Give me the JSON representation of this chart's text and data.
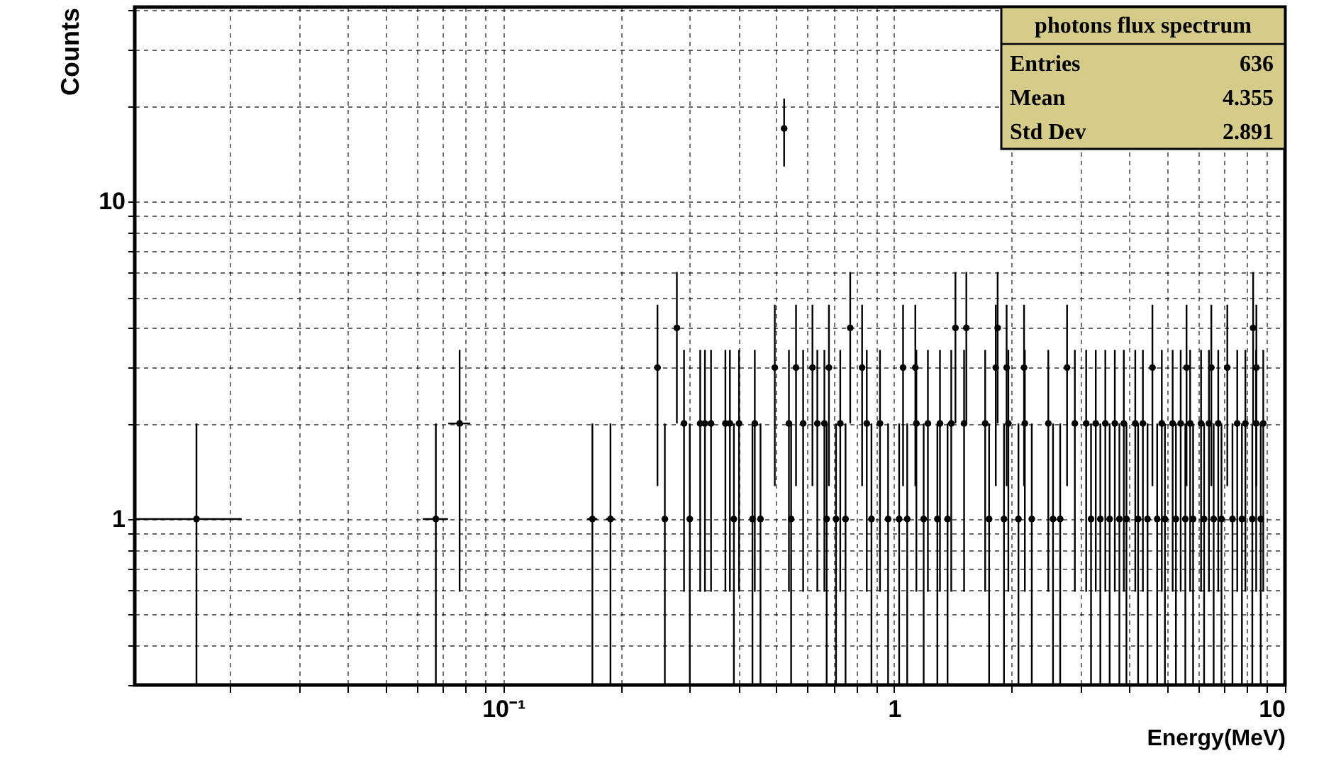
{
  "chart_data": {
    "type": "scatter",
    "title": "photons flux spectrum",
    "xlabel": "Energy(MeV)",
    "ylabel": "Counts",
    "log": "xy",
    "grid": true,
    "marker": "circle",
    "xlim": [
      0.0114,
      10
    ],
    "ylim": [
      0.3,
      41
    ],
    "xticks": [
      {
        "value": 0.02,
        "label": null
      },
      {
        "value": 0.03,
        "label": null
      },
      {
        "value": 0.04,
        "label": null
      },
      {
        "value": 0.05,
        "label": null
      },
      {
        "value": 0.06,
        "label": null
      },
      {
        "value": 0.07,
        "label": null
      },
      {
        "value": 0.08,
        "label": null
      },
      {
        "value": 0.09,
        "label": null
      },
      {
        "value": 0.1,
        "label": "10⁻¹"
      },
      {
        "value": 0.2,
        "label": null
      },
      {
        "value": 0.3,
        "label": null
      },
      {
        "value": 0.4,
        "label": null
      },
      {
        "value": 0.5,
        "label": null
      },
      {
        "value": 0.6,
        "label": null
      },
      {
        "value": 0.7,
        "label": null
      },
      {
        "value": 0.8,
        "label": null
      },
      {
        "value": 0.9,
        "label": null
      },
      1,
      {
        "value": 2,
        "label": null
      },
      {
        "value": 3,
        "label": null
      },
      {
        "value": 4,
        "label": null
      },
      {
        "value": 5,
        "label": null
      },
      {
        "value": 6,
        "label": null
      },
      {
        "value": 7,
        "label": null
      },
      {
        "value": 8,
        "label": null
      },
      {
        "value": 9,
        "label": null
      },
      10
    ],
    "yticks": [
      {
        "value": 0.3,
        "label": null
      },
      {
        "value": 0.4,
        "label": null
      },
      {
        "value": 0.5,
        "label": null
      },
      {
        "value": 0.6,
        "label": null
      },
      {
        "value": 0.7,
        "label": null
      },
      {
        "value": 0.8,
        "label": null
      },
      {
        "value": 0.9,
        "label": null
      },
      1,
      {
        "value": 2,
        "label": null
      },
      {
        "value": 3,
        "label": null
      },
      {
        "value": 4,
        "label": null
      },
      {
        "value": 5,
        "label": null
      },
      {
        "value": 6,
        "label": null
      },
      {
        "value": 7,
        "label": null
      },
      {
        "value": 8,
        "label": null
      },
      {
        "value": 9,
        "label": null
      },
      10,
      {
        "value": 20,
        "label": null
      },
      {
        "value": 30,
        "label": null
      },
      {
        "value": 40,
        "label": null
      }
    ],
    "annotations": [
      "Entries 636",
      "Mean 4.355",
      "Std Dev 2.891"
    ],
    "series": [
      {
        "color": "#000000",
        "x": [
          0.0164,
          0.0672,
          0.0773,
          0.169,
          0.188,
          0.248,
          0.259,
          0.278,
          0.29,
          0.3,
          0.319,
          0.328,
          0.34,
          0.37,
          0.38,
          0.389,
          0.401,
          0.434,
          0.44,
          0.455,
          0.495,
          0.523
        ],
        "values": [
          1,
          1,
          2,
          1,
          1,
          3,
          1,
          4,
          2,
          1,
          2,
          2,
          2,
          2,
          2,
          1,
          2,
          1,
          2,
          1,
          3,
          17
        ],
        "errors": [
          [
            0.3,
            2
          ],
          [
            0.3,
            2
          ],
          1.41,
          [
            0.3,
            2
          ],
          [
            0.3,
            2
          ],
          1.73,
          [
            0.3,
            2
          ],
          2,
          1.41,
          [
            0.3,
            2
          ],
          1.41,
          1.41,
          1.41,
          1.41,
          1.41,
          [
            0.3,
            2
          ],
          1.41,
          [
            0.3,
            2
          ],
          1.41,
          [
            0.3,
            2
          ],
          1.73,
          4.1
        ],
        "xerrors": [
          0.005,
          0.005,
          0.005,
          0.005,
          0.005,
          0.005,
          0.005,
          0.005,
          0.005,
          0.005,
          0.005,
          0.005,
          0.005,
          0.005,
          0.005,
          0.005,
          0.005,
          0.005,
          0.005,
          0.005,
          0.005,
          0.005
        ]
      },
      {
        "color": "#000000",
        "x": [
          0.561,
          0.618,
          0.681,
          0.828,
          1.054,
          1.133,
          1.82,
          1.94,
          2.15,
          2.77,
          4.58,
          5.6,
          6.48,
          7.12,
          8.45
        ],
        "values": [
          3,
          3,
          3,
          3,
          3,
          3,
          3,
          3,
          3,
          3,
          3,
          3,
          3,
          3,
          3
        ],
        "errors": [
          1.73,
          1.73,
          1.73,
          1.73,
          1.73,
          1.73,
          1.73,
          1.73,
          1.73,
          1.73,
          1.73,
          1.73,
          1.73,
          1.73,
          1.73
        ]
      },
      {
        "color": "#000000",
        "x": [
          0.772,
          1.435,
          1.53,
          1.84,
          8.29
        ],
        "values": [
          4,
          4,
          4,
          4,
          4
        ],
        "errors": [
          2,
          2,
          2,
          2,
          2
        ]
      },
      {
        "color": "#000000",
        "x": [
          0.538,
          0.585,
          0.636,
          0.663,
          0.728,
          0.851,
          0.92,
          1.14,
          1.22,
          1.31,
          1.4,
          1.51,
          1.71,
          1.96,
          2.16,
          2.48,
          2.9,
          3.1,
          3.28,
          3.47,
          3.67,
          3.87,
          4.14,
          4.33,
          4.84,
          5.16,
          5.41,
          5.72,
          6.1,
          6.39,
          6.75,
          7.55,
          7.92,
          8.44,
          8.8
        ],
        "values": [
          2,
          2,
          2,
          2,
          2,
          2,
          2,
          2,
          2,
          2,
          2,
          2,
          2,
          2,
          2,
          2,
          2,
          2,
          2,
          2,
          2,
          2,
          2,
          2,
          2,
          2,
          2,
          2,
          2,
          2,
          2,
          2,
          2,
          2,
          2
        ],
        "errors": [
          1.41,
          1.41,
          1.41,
          1.41,
          1.41,
          1.41,
          1.41,
          1.41,
          1.41,
          1.41,
          1.41,
          1.41,
          1.41,
          1.41,
          1.41,
          1.41,
          1.41,
          1.41,
          1.41,
          1.41,
          1.41,
          1.41,
          1.41,
          1.41,
          1.41,
          1.41,
          1.41,
          1.41,
          1.41,
          1.41,
          1.41,
          1.41,
          1.41,
          1.41,
          1.41
        ]
      },
      {
        "color": "#000000",
        "x": [
          0.545,
          0.672,
          0.71,
          0.751,
          0.875,
          0.965,
          1.03,
          1.08,
          1.19,
          1.29,
          1.37,
          1.75,
          1.91,
          2.08,
          2.25,
          2.55,
          2.66,
          3.19,
          3.37,
          3.56,
          3.77,
          3.93,
          4.21,
          4.45,
          4.71,
          4.93,
          5.26,
          5.56,
          5.82,
          6.21,
          6.57,
          6.88,
          7.34,
          7.76,
          8.25,
          8.67
        ],
        "values": [
          1,
          1,
          1,
          1,
          1,
          1,
          1,
          1,
          1,
          1,
          1,
          1,
          1,
          1,
          1,
          1,
          1,
          1,
          1,
          1,
          1,
          1,
          1,
          1,
          1,
          1,
          1,
          1,
          1,
          1,
          1,
          1,
          1,
          1,
          1,
          1
        ],
        "errors": [
          [
            0.3,
            2
          ],
          [
            0.3,
            2
          ],
          [
            0.3,
            2
          ],
          [
            0.3,
            2
          ],
          [
            0.3,
            2
          ],
          [
            0.3,
            2
          ],
          [
            0.3,
            2
          ],
          [
            0.3,
            2
          ],
          [
            0.3,
            2
          ],
          [
            0.3,
            2
          ],
          [
            0.3,
            2
          ],
          [
            0.3,
            2
          ],
          [
            0.3,
            2
          ],
          [
            0.3,
            2
          ],
          [
            0.3,
            2
          ],
          [
            0.3,
            2
          ],
          [
            0.3,
            2
          ],
          [
            0.3,
            2
          ],
          [
            0.3,
            2
          ],
          [
            0.3,
            2
          ],
          [
            0.3,
            2
          ],
          [
            0.3,
            2
          ],
          [
            0.3,
            2
          ],
          [
            0.3,
            2
          ],
          [
            0.3,
            2
          ],
          [
            0.3,
            2
          ],
          [
            0.3,
            2
          ],
          [
            0.3,
            2
          ],
          [
            0.3,
            2
          ],
          [
            0.3,
            2
          ],
          [
            0.3,
            2
          ],
          [
            0.3,
            2
          ],
          [
            0.3,
            2
          ],
          [
            0.3,
            2
          ],
          [
            0.3,
            2
          ],
          [
            0.3,
            2
          ]
        ]
      }
    ]
  }
}
